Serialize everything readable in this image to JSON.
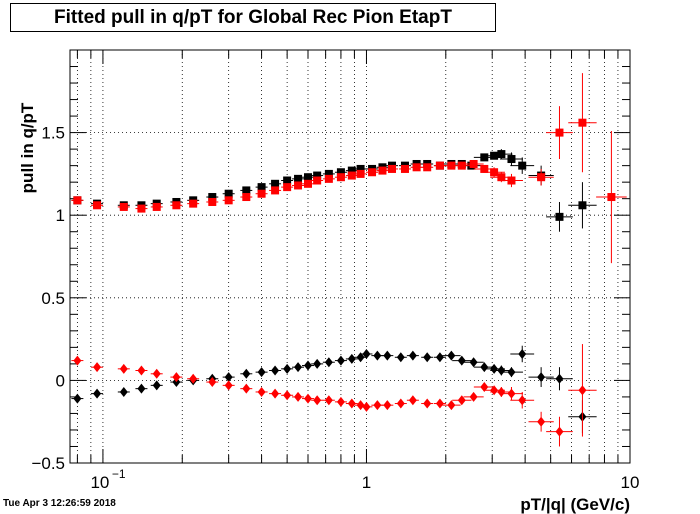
{
  "page": {
    "timestamp": "Tue Apr  3 12:26:59 2018"
  },
  "chart_data": {
    "type": "scatter",
    "title": "Fitted pull in q/pT for Global Rec Pion EtapT",
    "xlabel": "pT/|q| (GeV/c)",
    "ylabel": "pull in q/pT",
    "xscale": "log",
    "xlim": [
      0.075,
      10
    ],
    "ylim": [
      -0.5,
      2.0
    ],
    "grid": true,
    "x_tick_labels": [
      "10^-1",
      "1",
      "10"
    ],
    "y_tick_labels": [
      "-0.5",
      "0",
      "0.5",
      "1",
      "1.5"
    ],
    "y_ticks": [
      -0.5,
      0,
      0.5,
      1,
      1.5
    ],
    "series": [
      {
        "marker": "square",
        "color": "#000000",
        "points": [
          [
            0.08,
            1.09
          ],
          [
            0.095,
            1.07
          ],
          [
            0.12,
            1.06
          ],
          [
            0.14,
            1.06
          ],
          [
            0.16,
            1.07
          ],
          [
            0.19,
            1.08
          ],
          [
            0.22,
            1.09
          ],
          [
            0.26,
            1.11
          ],
          [
            0.3,
            1.13
          ],
          [
            0.35,
            1.15
          ],
          [
            0.4,
            1.17
          ],
          [
            0.45,
            1.19
          ],
          [
            0.5,
            1.21
          ],
          [
            0.55,
            1.22
          ],
          [
            0.6,
            1.23
          ],
          [
            0.65,
            1.24
          ],
          [
            0.72,
            1.25
          ],
          [
            0.8,
            1.26
          ],
          [
            0.88,
            1.27
          ],
          [
            0.95,
            1.28
          ],
          [
            1.05,
            1.28
          ],
          [
            1.15,
            1.29
          ],
          [
            1.25,
            1.3
          ],
          [
            1.4,
            1.3
          ],
          [
            1.55,
            1.31
          ],
          [
            1.7,
            1.31
          ],
          [
            1.9,
            1.3
          ],
          [
            2.1,
            1.31
          ],
          [
            2.3,
            1.31
          ],
          [
            2.5,
            1.3
          ],
          [
            2.8,
            1.35
          ],
          [
            3.05,
            1.36
          ],
          [
            3.25,
            1.37
          ],
          [
            3.55,
            1.34
          ],
          [
            3.9,
            1.3
          ],
          [
            4.6,
            1.24
          ],
          [
            5.4,
            0.99
          ],
          [
            6.6,
            1.06
          ]
        ],
        "errors": [
          0,
          0,
          0,
          0,
          0,
          0,
          0,
          0,
          0,
          0,
          0,
          0,
          0,
          0,
          0,
          0,
          0,
          0,
          0,
          0,
          0,
          0,
          0,
          0,
          0,
          0,
          0,
          0,
          0,
          0.02,
          0.02,
          0.02,
          0.03,
          0.04,
          0.05,
          0.06,
          0.09,
          0.14
        ]
      },
      {
        "marker": "square",
        "color": "#ff0000",
        "points": [
          [
            0.08,
            1.09
          ],
          [
            0.095,
            1.06
          ],
          [
            0.12,
            1.05
          ],
          [
            0.14,
            1.04
          ],
          [
            0.16,
            1.05
          ],
          [
            0.19,
            1.06
          ],
          [
            0.22,
            1.07
          ],
          [
            0.26,
            1.08
          ],
          [
            0.3,
            1.09
          ],
          [
            0.35,
            1.11
          ],
          [
            0.4,
            1.13
          ],
          [
            0.45,
            1.15
          ],
          [
            0.5,
            1.17
          ],
          [
            0.55,
            1.18
          ],
          [
            0.6,
            1.19
          ],
          [
            0.65,
            1.21
          ],
          [
            0.72,
            1.22
          ],
          [
            0.8,
            1.23
          ],
          [
            0.88,
            1.24
          ],
          [
            0.95,
            1.25
          ],
          [
            1.05,
            1.26
          ],
          [
            1.15,
            1.27
          ],
          [
            1.25,
            1.28
          ],
          [
            1.4,
            1.28
          ],
          [
            1.55,
            1.29
          ],
          [
            1.7,
            1.29
          ],
          [
            1.9,
            1.3
          ],
          [
            2.1,
            1.3
          ],
          [
            2.3,
            1.3
          ],
          [
            2.55,
            1.31
          ],
          [
            2.8,
            1.28
          ],
          [
            3.05,
            1.26
          ],
          [
            3.25,
            1.23
          ],
          [
            3.55,
            1.21
          ],
          [
            4.6,
            1.23
          ],
          [
            5.4,
            1.5
          ],
          [
            6.6,
            1.56
          ],
          [
            8.5,
            1.11
          ]
        ],
        "errors": [
          0,
          0,
          0,
          0,
          0,
          0,
          0,
          0,
          0,
          0,
          0,
          0,
          0,
          0,
          0,
          0,
          0,
          0,
          0,
          0,
          0,
          0,
          0,
          0,
          0,
          0,
          0,
          0,
          0,
          0.02,
          0.02,
          0.03,
          0.03,
          0.04,
          0.05,
          0.16,
          0.3,
          0.4
        ]
      },
      {
        "marker": "diamond",
        "color": "#000000",
        "points": [
          [
            0.08,
            -0.11
          ],
          [
            0.095,
            -0.08
          ],
          [
            0.12,
            -0.07
          ],
          [
            0.14,
            -0.05
          ],
          [
            0.16,
            -0.03
          ],
          [
            0.19,
            -0.01
          ],
          [
            0.22,
            0.0
          ],
          [
            0.26,
            0.01
          ],
          [
            0.3,
            0.02
          ],
          [
            0.35,
            0.04
          ],
          [
            0.4,
            0.05
          ],
          [
            0.45,
            0.06
          ],
          [
            0.5,
            0.07
          ],
          [
            0.55,
            0.08
          ],
          [
            0.6,
            0.09
          ],
          [
            0.65,
            0.1
          ],
          [
            0.72,
            0.11
          ],
          [
            0.8,
            0.12
          ],
          [
            0.88,
            0.13
          ],
          [
            0.95,
            0.14
          ],
          [
            1.0,
            0.16
          ],
          [
            1.1,
            0.15
          ],
          [
            1.2,
            0.15
          ],
          [
            1.35,
            0.14
          ],
          [
            1.5,
            0.15
          ],
          [
            1.7,
            0.14
          ],
          [
            1.9,
            0.14
          ],
          [
            2.1,
            0.15
          ],
          [
            2.3,
            0.12
          ],
          [
            2.55,
            0.11
          ],
          [
            2.8,
            0.08
          ],
          [
            3.05,
            0.07
          ],
          [
            3.25,
            0.06
          ],
          [
            3.55,
            0.05
          ],
          [
            3.9,
            0.16
          ],
          [
            4.6,
            0.02
          ],
          [
            5.4,
            0.01
          ],
          [
            6.6,
            -0.22
          ]
        ],
        "errors": [
          0,
          0,
          0,
          0,
          0,
          0,
          0,
          0,
          0,
          0,
          0,
          0,
          0,
          0,
          0,
          0,
          0,
          0,
          0,
          0,
          0,
          0,
          0,
          0,
          0,
          0,
          0,
          0,
          0,
          0.02,
          0.02,
          0.02,
          0.03,
          0.03,
          0.05,
          0.06,
          0.07,
          0.1
        ]
      },
      {
        "marker": "diamond",
        "color": "#ff0000",
        "points": [
          [
            0.08,
            0.12
          ],
          [
            0.095,
            0.08
          ],
          [
            0.12,
            0.07
          ],
          [
            0.14,
            0.06
          ],
          [
            0.16,
            0.04
          ],
          [
            0.19,
            0.02
          ],
          [
            0.22,
            0.01
          ],
          [
            0.26,
            -0.01
          ],
          [
            0.3,
            -0.03
          ],
          [
            0.35,
            -0.05
          ],
          [
            0.4,
            -0.07
          ],
          [
            0.45,
            -0.08
          ],
          [
            0.5,
            -0.09
          ],
          [
            0.55,
            -0.1
          ],
          [
            0.6,
            -0.11
          ],
          [
            0.65,
            -0.12
          ],
          [
            0.72,
            -0.12
          ],
          [
            0.8,
            -0.13
          ],
          [
            0.88,
            -0.14
          ],
          [
            0.95,
            -0.15
          ],
          [
            1.0,
            -0.16
          ],
          [
            1.1,
            -0.15
          ],
          [
            1.2,
            -0.15
          ],
          [
            1.35,
            -0.14
          ],
          [
            1.5,
            -0.12
          ],
          [
            1.7,
            -0.14
          ],
          [
            1.9,
            -0.14
          ],
          [
            2.1,
            -0.15
          ],
          [
            2.3,
            -0.12
          ],
          [
            2.55,
            -0.1
          ],
          [
            2.8,
            -0.04
          ],
          [
            3.05,
            -0.06
          ],
          [
            3.25,
            -0.07
          ],
          [
            3.55,
            -0.08
          ],
          [
            3.9,
            -0.12
          ],
          [
            4.6,
            -0.25
          ],
          [
            5.4,
            -0.31
          ],
          [
            6.6,
            -0.06
          ]
        ],
        "errors": [
          0,
          0,
          0,
          0,
          0,
          0,
          0,
          0,
          0,
          0,
          0,
          0,
          0,
          0,
          0,
          0,
          0,
          0,
          0,
          0,
          0,
          0,
          0,
          0,
          0,
          0,
          0,
          0,
          0,
          0.02,
          0.02,
          0.02,
          0.03,
          0.04,
          0.05,
          0.06,
          0.09,
          0.28
        ]
      }
    ]
  }
}
